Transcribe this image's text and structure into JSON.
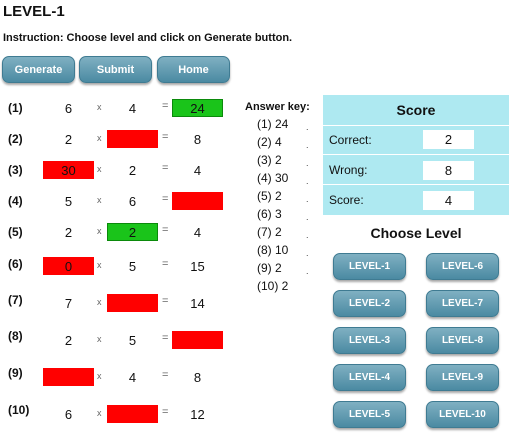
{
  "title": "LEVEL-1",
  "instruction": "Instruction: Choose level and click on Generate button.",
  "toolbar": {
    "generate": "Generate",
    "submit": "Submit",
    "home": "Home"
  },
  "questions": [
    {
      "num": "(1)",
      "a": "6",
      "b": "4",
      "c": "24",
      "op_x": "x",
      "op_eq": "="
    },
    {
      "num": "(2)",
      "a": "2",
      "b": "",
      "c": "8",
      "op_x": "x",
      "op_eq": "="
    },
    {
      "num": "(3)",
      "a": "30",
      "b": "2",
      "c": "4",
      "op_x": "x",
      "op_eq": "="
    },
    {
      "num": "(4)",
      "a": "5",
      "b": "6",
      "c": "",
      "op_x": "x",
      "op_eq": "="
    },
    {
      "num": "(5)",
      "a": "2",
      "b": "2",
      "c": "4",
      "op_x": "x",
      "op_eq": "="
    },
    {
      "num": "(6)",
      "a": "0",
      "b": "5",
      "c": "15",
      "op_x": "x",
      "op_eq": "="
    },
    {
      "num": "(7)",
      "a": "7",
      "b": "",
      "c": "14",
      "op_x": "x",
      "op_eq": "="
    },
    {
      "num": "(8)",
      "a": "2",
      "b": "5",
      "c": "",
      "op_x": "x",
      "op_eq": "="
    },
    {
      "num": "(9)",
      "a": "",
      "b": "4",
      "c": "8",
      "op_x": "x",
      "op_eq": "="
    },
    {
      "num": "(10)",
      "a": "6",
      "b": "",
      "c": "12",
      "op_x": "x",
      "op_eq": "="
    }
  ],
  "answer_key": {
    "title": "Answer key:",
    "items": [
      "(1) 24",
      "(2) 4",
      "(3) 2",
      "(4) 30",
      "(5) 2",
      "(6) 3",
      "(7) 2",
      "(8) 10",
      "(9) 2",
      "(10) 2"
    ],
    "dot": "."
  },
  "score": {
    "title": "Score",
    "correct_label": "Correct:",
    "correct": "2",
    "wrong_label": "Wrong:",
    "wrong": "8",
    "score_label": "Score:",
    "score": "4"
  },
  "choose_level": {
    "title": "Choose Level",
    "levels": [
      "LEVEL-1",
      "LEVEL-2",
      "LEVEL-3",
      "LEVEL-4",
      "LEVEL-5",
      "LEVEL-6",
      "LEVEL-7",
      "LEVEL-8",
      "LEVEL-9",
      "LEVEL-10"
    ]
  },
  "colors": {
    "button": "#5b96ad",
    "panel": "#aee9f1",
    "wrong_cell": "#ff0000",
    "right_cell": "#1ac41a"
  }
}
